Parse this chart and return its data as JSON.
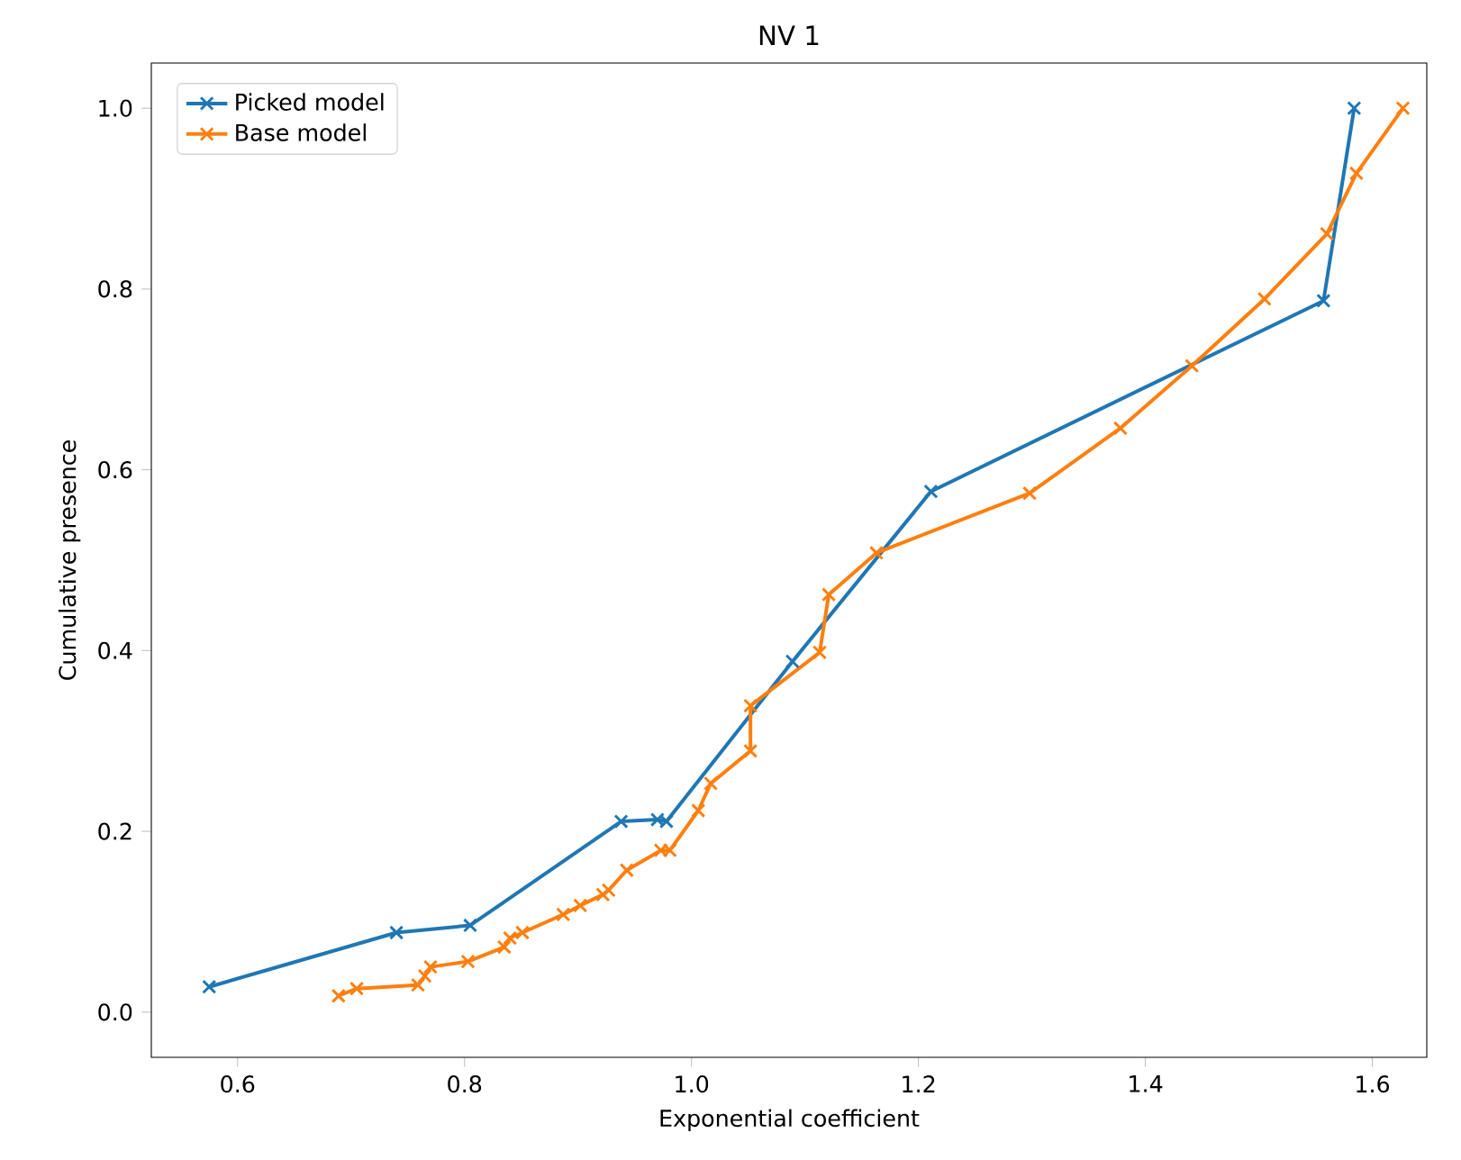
{
  "chart_data": {
    "type": "line",
    "title": "NV 1",
    "xlabel": "Exponential coefficient",
    "ylabel": "Cumulative presence",
    "xlim": [
      0.524,
      1.648
    ],
    "ylim": [
      -0.05,
      1.05
    ],
    "xticks": [
      0.6,
      0.8,
      {
        "value": 1,
        "label": "1.0"
      },
      1.2,
      1.4,
      1.6
    ],
    "yticks": [
      {
        "value": 0,
        "label": "0.0"
      },
      0.2,
      0.4,
      0.6,
      0.8,
      {
        "value": 1,
        "label": "1.0"
      }
    ],
    "grid": false,
    "legend": "top left",
    "marker": "cross",
    "line_style": "solid",
    "series": [
      {
        "name": "Picked model",
        "color": "#1f77b4",
        "x": [
          0.575,
          0.74,
          0.805,
          0.938,
          0.97,
          0.978,
          1.089,
          1.211,
          1.557,
          1.584
        ],
        "values": [
          0.028,
          0.088,
          0.096,
          0.211,
          0.213,
          0.211,
          0.388,
          0.576,
          0.787,
          1.0
        ]
      },
      {
        "name": "Base model",
        "color": "#ff7f0e",
        "x": [
          0.689,
          0.705,
          0.759,
          0.765,
          0.77,
          0.803,
          0.835,
          0.84,
          0.851,
          0.887,
          0.902,
          0.922,
          0.927,
          0.943,
          0.973,
          0.981,
          1.006,
          1.017,
          1.052,
          1.052,
          1.113,
          1.121,
          1.163,
          1.298,
          1.378,
          1.441,
          1.505,
          1.56,
          1.586,
          1.627
        ],
        "values": [
          0.018,
          0.026,
          0.03,
          0.04,
          0.05,
          0.056,
          0.072,
          0.082,
          0.088,
          0.108,
          0.118,
          0.13,
          0.135,
          0.157,
          0.179,
          0.179,
          0.223,
          0.253,
          0.289,
          0.339,
          0.398,
          0.462,
          0.508,
          0.574,
          0.646,
          0.715,
          0.789,
          0.861,
          0.928,
          1.0
        ]
      }
    ]
  }
}
